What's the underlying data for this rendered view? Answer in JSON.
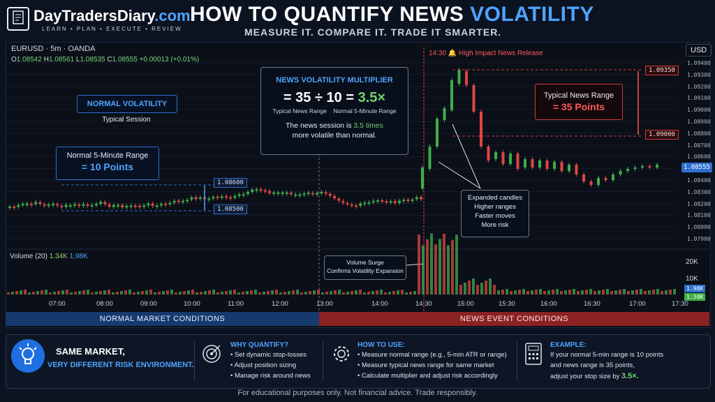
{
  "brand": {
    "name": "DayTradersDiary",
    "domain_suffix": ".com",
    "tagline": "LEARN • PLAN • EXECUTE • REVIEW"
  },
  "title": {
    "main": "HOW TO QUANTIFY NEWS ",
    "accent": "VOLATILITY",
    "subtitle": "MEASURE IT. COMPARE IT. TRADE IT SMARTER."
  },
  "chart": {
    "symbol": "EURUSD",
    "sep1": "·",
    "timeframe": "5m",
    "sep2": "·",
    "broker": "OANDA",
    "o_label": "O",
    "o": "1.08542",
    "h_label": "H",
    "h": "1.08561",
    "l_label": "L",
    "l": "1.08535",
    "c_label": "C",
    "c": "1.08555",
    "change": "+0.00013 (+0.01%)",
    "currency": "USD",
    "news_time": "14:30",
    "news_label": "High Impact News Release",
    "price_labels": [
      "1.09400",
      "1.09300",
      "1.09200",
      "1.09100",
      "1.09000",
      "1.08900",
      "1.08800",
      "1.08700",
      "1.08600",
      "1.08500",
      "1.08400",
      "1.08300",
      "1.08200",
      "1.08100",
      "1.08000",
      "1.07900"
    ],
    "current_price": "1.08555",
    "hi_marker": "1.09350",
    "lo_marker": "1.09000",
    "normal_hi": "1.08600",
    "normal_lo": "1.08500",
    "time_labels": [
      "07:00",
      "08:00",
      "09:00",
      "10:00",
      "11:00",
      "12:00",
      "13:00",
      "14:00",
      "14:30",
      "15:00",
      "15:30",
      "16:00",
      "16:30",
      "17:00",
      "17:30"
    ],
    "volume_label": "Volume (20)",
    "vol_a": "1.34K",
    "vol_b": "1.98K",
    "vol_axis": [
      "20K",
      "10K"
    ],
    "vol_tag_b": "1.98K",
    "vol_tag_a": "1.34K"
  },
  "colors": {
    "up": "#3fae4a",
    "down": "#e04646",
    "accent": "#4fa3ff",
    "news": "#e04646"
  },
  "annotations": {
    "normal_vol_title": "NORMAL VOLATILITY",
    "normal_vol_sub": "Typical Session",
    "normal_range_title": "Normal 5-Minute Range",
    "normal_range_value": "= 10 Points",
    "multiplier_title": "NEWS VOLATILITY MULTIPLIER",
    "mult_eq": "= 35",
    "mult_div": "÷",
    "mult_ten": "10",
    "mult_eq2": "=",
    "mult_result": "3.5×",
    "mult_label_a": "Typical News Range",
    "mult_label_b": "Normal 5-Minute Range",
    "mult_line1": "The news session is ",
    "mult_highlight": "3.5 times",
    "mult_line2": "more volatile than normal.",
    "news_range_title": "Typical News Range",
    "news_range_value": "= 35 Points",
    "expanded": [
      "Expanded candles",
      "Higher ranges",
      "Faster moves",
      "More risk"
    ],
    "vol_surge": [
      "Volume Surge",
      "Confirms Volatility Expansion"
    ]
  },
  "conditions": {
    "normal": "NORMAL MARKET CONDITIONS",
    "news": "NEWS EVENT CONDITIONS"
  },
  "bottom": {
    "headline1": "SAME MARKET,",
    "headline2": "VERY DIFFERENT RISK ENVIRONMENT.",
    "why_title": "WHY QUANTIFY?",
    "why": [
      "• Set dynamic stop-losses",
      "• Adjust position sizing",
      "• Manage risk around news"
    ],
    "how_title": "HOW TO USE:",
    "how": [
      "• Measure normal range (e.g., 5-min ATR or range)",
      "• Measure typical news range for same market",
      "• Calculate multiplier and adjust risk accordingly"
    ],
    "ex_title": "EXAMPLE:",
    "ex1": "If your normal 5-min range is 10 points",
    "ex2": "and news range is 35 points,",
    "ex3": "adjust your stop size by ",
    "ex_value": "3.5×."
  },
  "disclaimer": "For educational purposes only. Not financial advice. Trade responsibly."
}
